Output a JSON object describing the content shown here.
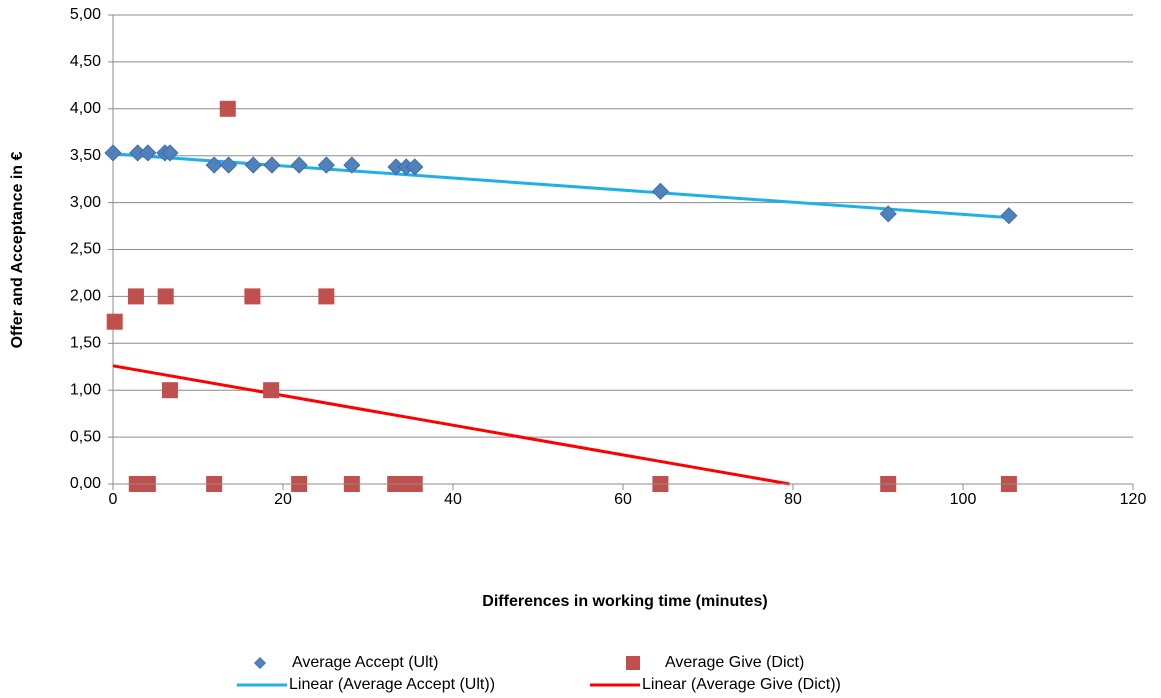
{
  "chart_data": {
    "type": "scatter",
    "xlabel": "Differences in working time (minutes)",
    "ylabel": "Offer and Acceptance  in €",
    "xlim": [
      0,
      120
    ],
    "xticks": [
      0,
      20,
      40,
      60,
      80,
      100,
      120
    ],
    "ylim": [
      0,
      5
    ],
    "yticks": [
      {
        "value": 0,
        "label": "0,00"
      },
      {
        "value": 0.5,
        "label": "0,50"
      },
      {
        "value": 1,
        "label": "1,00"
      },
      {
        "value": 1.5,
        "label": "1,50"
      },
      {
        "value": 2,
        "label": "2,00"
      },
      {
        "value": 2.5,
        "label": "2,50"
      },
      {
        "value": 3,
        "label": "3,00"
      },
      {
        "value": 3.5,
        "label": "3,50"
      },
      {
        "value": 4,
        "label": "4,00"
      },
      {
        "value": 4.5,
        "label": "4,50"
      },
      {
        "value": 5,
        "label": "5,00"
      }
    ],
    "grid": true,
    "legend": "bottom",
    "series": [
      {
        "name": "Average Accept (Ult)",
        "color": "#4f81bd",
        "marker": "diamond",
        "x": [
          0,
          2.9,
          4.1,
          6.1,
          6.7,
          11.9,
          13.6,
          16.5,
          18.7,
          21.9,
          25.1,
          28.1,
          33.3,
          34.5,
          35.5,
          64.4,
          91.2,
          105.4
        ],
        "values": [
          3.53,
          3.53,
          3.53,
          3.53,
          3.53,
          3.4,
          3.4,
          3.4,
          3.4,
          3.4,
          3.4,
          3.4,
          3.38,
          3.38,
          3.38,
          3.12,
          2.88,
          2.86
        ]
      },
      {
        "name": "Average Give (Dict)",
        "color": "#c0504d",
        "marker": "square",
        "x": [
          0.2,
          2.7,
          6.2,
          16.4,
          25.1,
          13.5,
          6.7,
          18.6,
          2.8,
          4.1,
          11.9,
          21.9,
          28.1,
          33.2,
          34.4,
          35.5,
          64.4,
          91.2,
          105.4
        ],
        "values": [
          1.73,
          2,
          2,
          2,
          2,
          4,
          1,
          1,
          0,
          0,
          0,
          0,
          0,
          0,
          0,
          0,
          0,
          0,
          0
        ]
      },
      {
        "name": "Linear (Average Accept (Ult))",
        "color": "#1fb1e6",
        "marker": "line",
        "x": [
          0,
          105.4
        ],
        "values": [
          3.52,
          2.84
        ]
      },
      {
        "name": "Linear (Average Give (Dict))",
        "color": "#ff0000",
        "marker": "line",
        "x": [
          0,
          79.6
        ],
        "values": [
          1.26,
          0
        ]
      }
    ]
  }
}
